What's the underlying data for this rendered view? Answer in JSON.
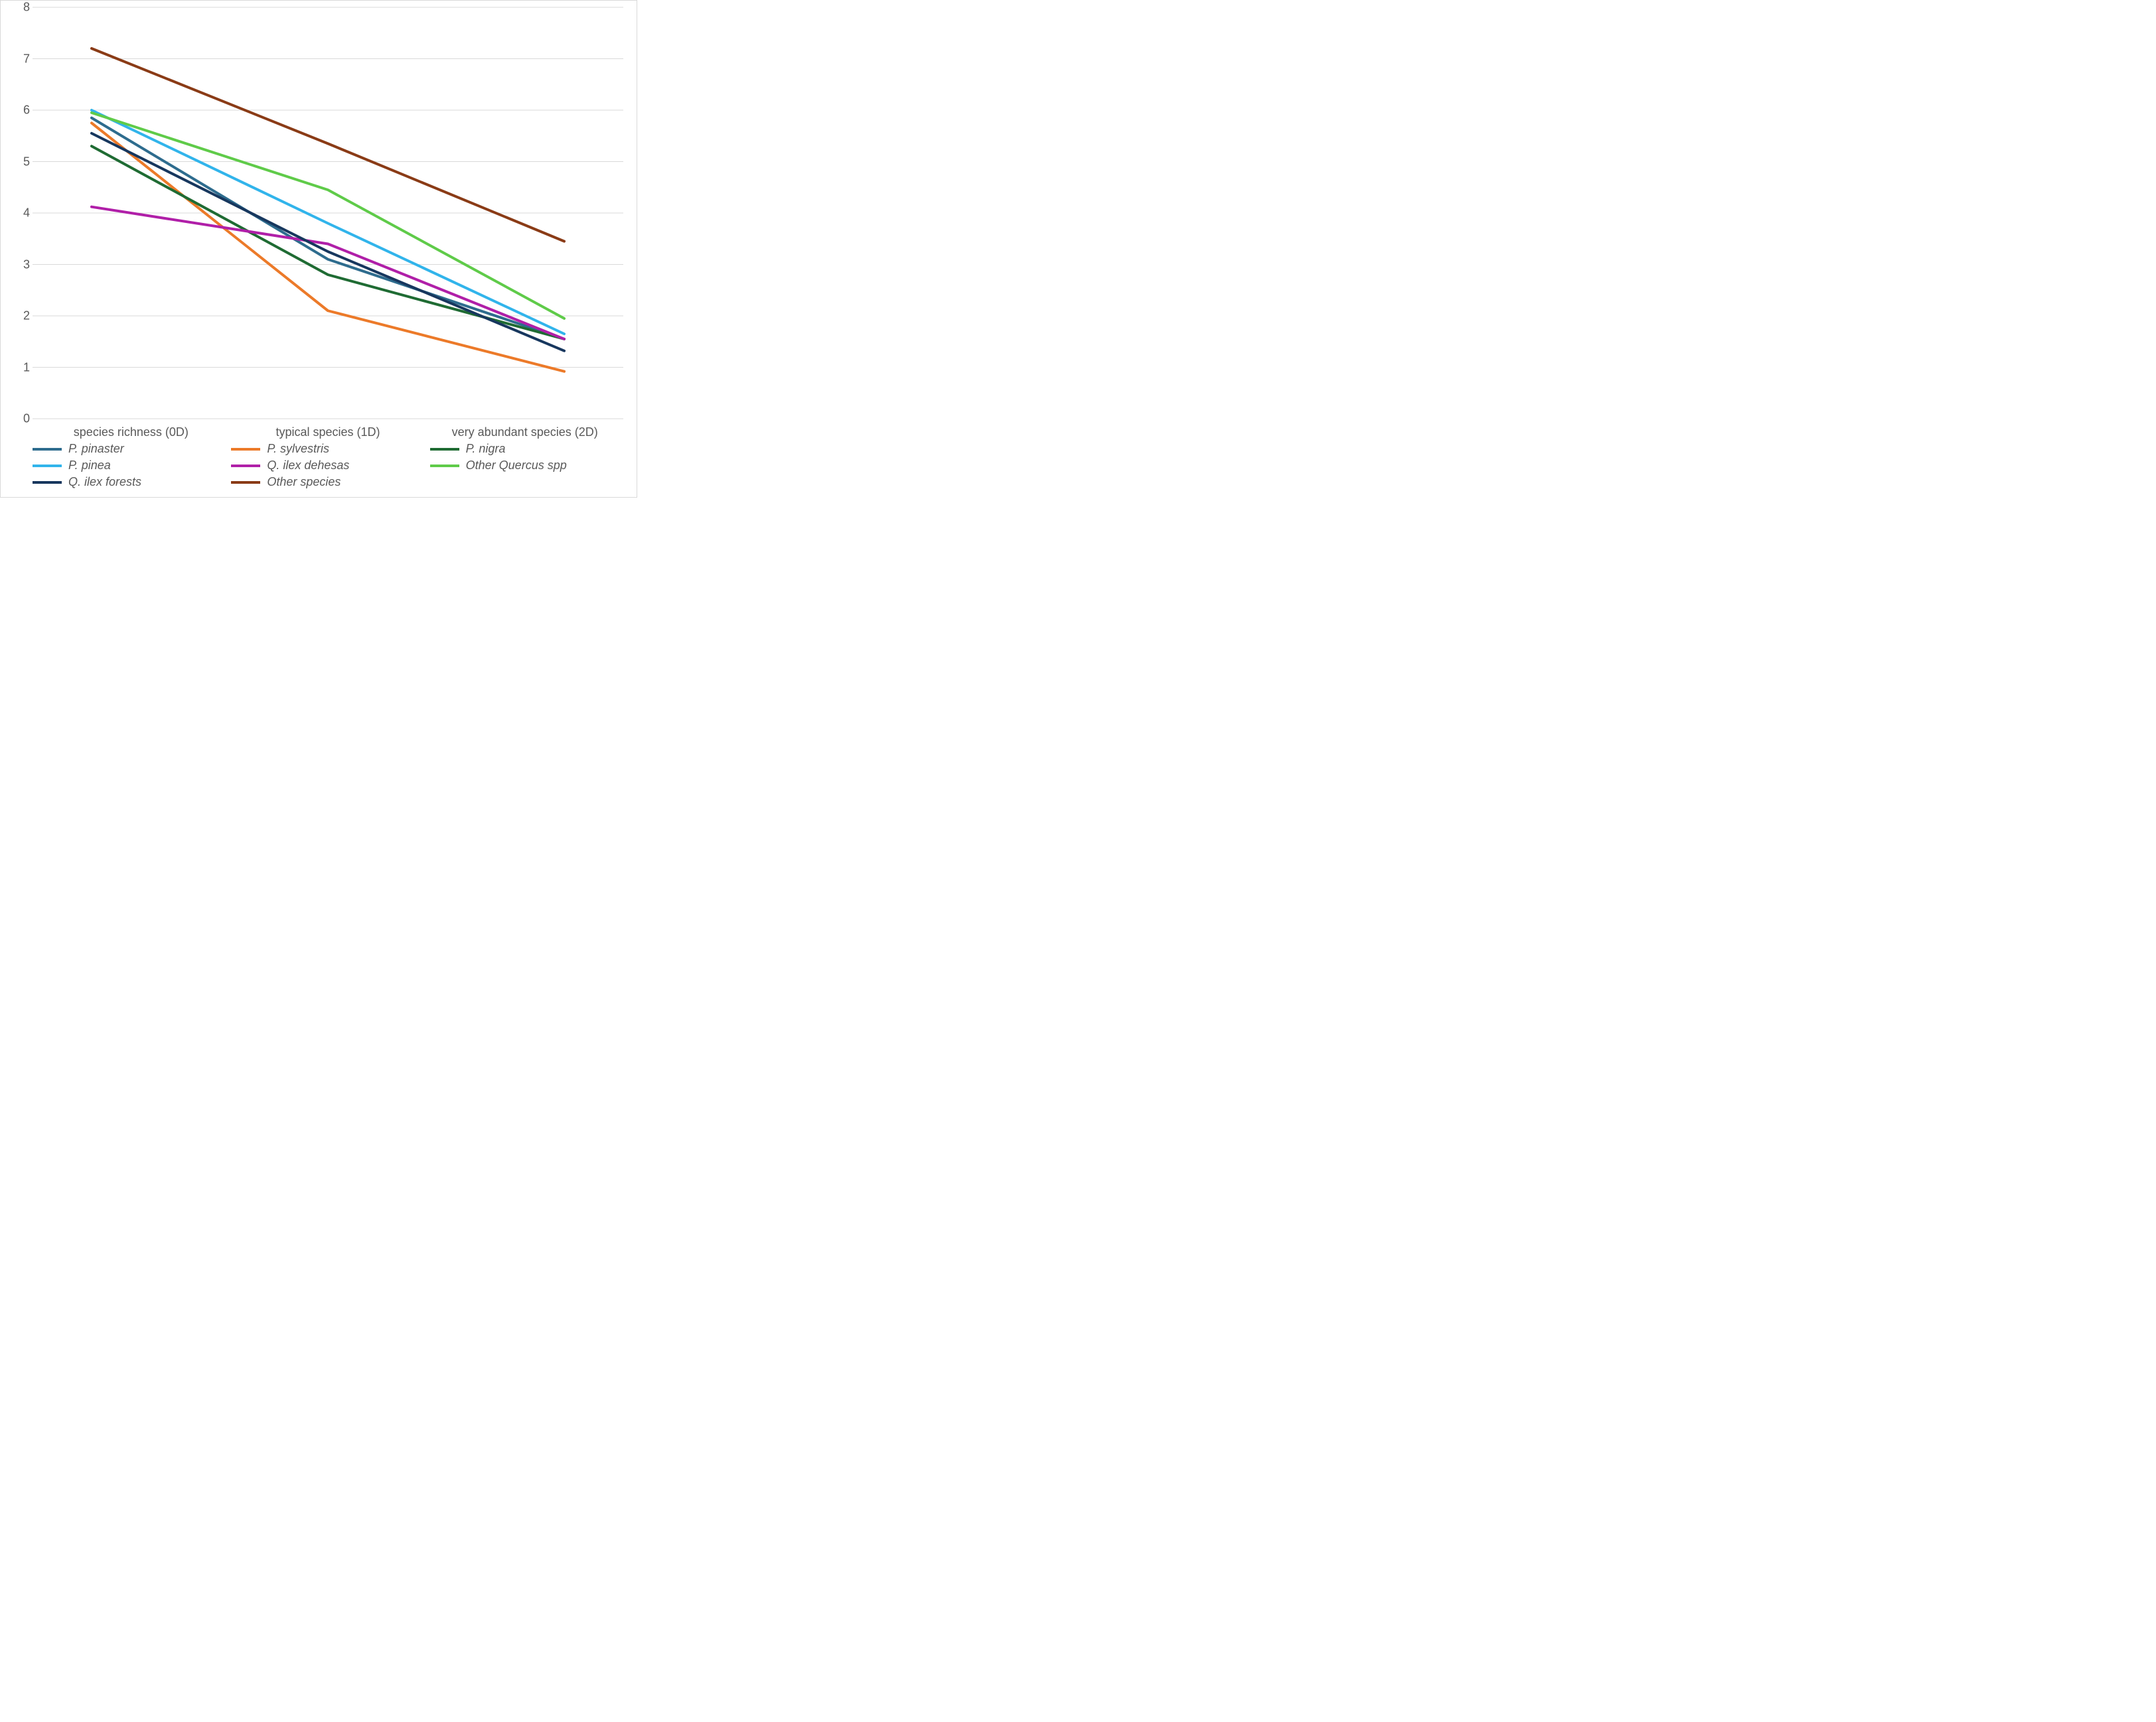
{
  "chart": {
    "type": "line",
    "background_color": "#ffffff",
    "border_color": "#d9d9d9",
    "grid_color": "#d9d9d9",
    "grid_width": 1,
    "line_width": 4,
    "font_family": "Aptos, Segoe UI, Helvetica Neue, Arial, sans-serif",
    "tick_fontsize": 18,
    "tick_color": "#595959",
    "legend_fontsize": 18,
    "legend_font_style": "italic",
    "legend_columns": 3,
    "ylim": [
      0,
      8
    ],
    "ytick_step": 1,
    "yticks": [
      0,
      1,
      2,
      3,
      4,
      5,
      6,
      7,
      8
    ],
    "categories": [
      "species richness (0D)",
      "typical species (1D)",
      "very abundant species (2D)"
    ],
    "x_positions": [
      0.1,
      0.5,
      0.9
    ],
    "series": [
      {
        "name": "P. pinaster",
        "color": "#2e6c8e",
        "values": [
          5.85,
          3.1,
          1.55
        ]
      },
      {
        "name": "P. sylvestris",
        "color": "#ec7a29",
        "values": [
          5.75,
          2.1,
          0.92
        ]
      },
      {
        "name": "P. nigra",
        "color": "#1f6b33",
        "values": [
          5.3,
          2.8,
          1.55
        ]
      },
      {
        "name": "P. pinea",
        "color": "#31b4eb",
        "values": [
          6.0,
          3.8,
          1.65
        ]
      },
      {
        "name": "Q. ilex dehesas",
        "color": "#b01fa8",
        "values": [
          4.12,
          3.4,
          1.55
        ]
      },
      {
        "name": "Other Quercus spp",
        "color": "#5fcb49",
        "values": [
          5.95,
          4.45,
          1.95
        ]
      },
      {
        "name": "Q. ilex forests",
        "color": "#17375e",
        "values": [
          5.55,
          3.25,
          1.32
        ]
      },
      {
        "name": "Other species",
        "color": "#8a3b16",
        "values": [
          7.2,
          5.35,
          3.45
        ]
      }
    ]
  }
}
